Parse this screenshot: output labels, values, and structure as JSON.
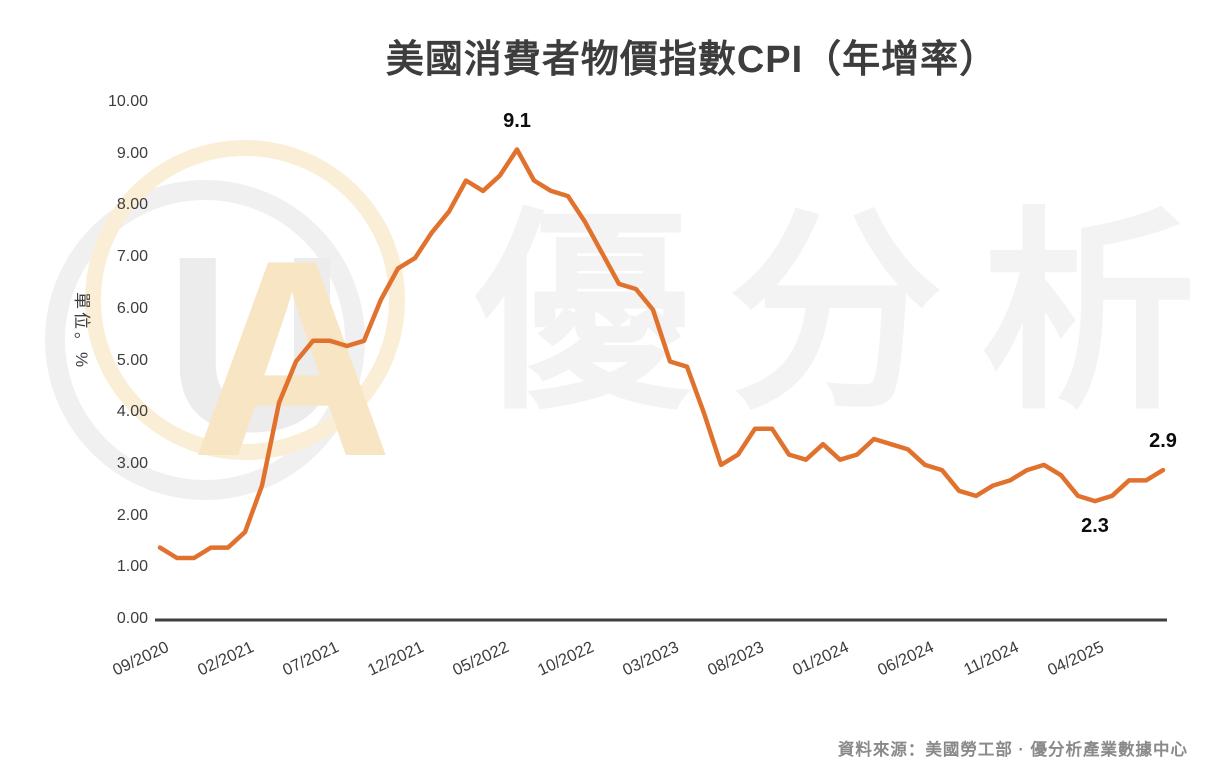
{
  "title": "美國消費者物價指數CPI（年增率）",
  "source": "資料來源：美國勞工部 · 優分析產業數據中心",
  "watermark": {
    "text": "優分析",
    "logo_u": "U",
    "logo_a": "A"
  },
  "colors": {
    "line": "#E1722E",
    "axis": "#3f3f3f",
    "label": "#3d3d3d",
    "annotation": "#0d0d0d",
    "source_text": "#8a8a8a",
    "watermark_gray": "#f0f0f0",
    "watermark_cream": "#fbeed6"
  },
  "y_axis": {
    "unit_label": "單位。%",
    "tick_labels": [
      "10.00",
      "9.00",
      "8.00",
      "7.00",
      "6.00",
      "5.00",
      "4.00",
      "3.00",
      "2.00",
      "1.00",
      "0.00"
    ]
  },
  "x_axis": {
    "tick_labels": [
      "09/2020",
      "02/2021",
      "07/2021",
      "12/2021",
      "05/2022",
      "10/2022",
      "03/2023",
      "08/2023",
      "01/2024",
      "06/2024",
      "11/2024",
      "04/2025"
    ]
  },
  "chart_data": {
    "type": "line",
    "title": "美國消費者物價指數CPI（年增率）",
    "xlabel": "",
    "ylabel": "單位。%",
    "ylim": [
      0,
      10
    ],
    "grid": false,
    "legend": "none",
    "x": [
      "09/2020",
      "10/2020",
      "11/2020",
      "12/2020",
      "01/2021",
      "02/2021",
      "03/2021",
      "04/2021",
      "05/2021",
      "06/2021",
      "07/2021",
      "08/2021",
      "09/2021",
      "10/2021",
      "11/2021",
      "12/2021",
      "01/2022",
      "02/2022",
      "03/2022",
      "04/2022",
      "05/2022",
      "06/2022",
      "07/2022",
      "08/2022",
      "09/2022",
      "10/2022",
      "11/2022",
      "12/2022",
      "01/2023",
      "02/2023",
      "03/2023",
      "04/2023",
      "05/2023",
      "06/2023",
      "07/2023",
      "08/2023",
      "09/2023",
      "10/2023",
      "11/2023",
      "12/2023",
      "01/2024",
      "02/2024",
      "03/2024",
      "04/2024",
      "05/2024",
      "06/2024",
      "07/2024",
      "08/2024",
      "09/2024",
      "10/2024",
      "11/2024",
      "12/2024",
      "01/2025",
      "02/2025",
      "03/2025",
      "04/2025",
      "05/2025",
      "06/2025",
      "07/2025",
      "08/2025"
    ],
    "series": [
      {
        "name": "CPI 年增率 (%)",
        "values": [
          1.4,
          1.2,
          1.2,
          1.4,
          1.4,
          1.7,
          2.6,
          4.2,
          5.0,
          5.4,
          5.4,
          5.3,
          5.4,
          6.2,
          6.8,
          7.0,
          7.5,
          7.9,
          8.5,
          8.3,
          8.6,
          9.1,
          8.5,
          8.3,
          8.2,
          7.7,
          7.1,
          6.5,
          6.4,
          6.0,
          5.0,
          4.9,
          4.0,
          3.0,
          3.2,
          3.7,
          3.7,
          3.2,
          3.1,
          3.4,
          3.1,
          3.2,
          3.5,
          3.4,
          3.3,
          3.0,
          2.9,
          2.5,
          2.4,
          2.6,
          2.7,
          2.9,
          3.0,
          2.8,
          2.4,
          2.3,
          2.4,
          2.7,
          2.7,
          2.9
        ]
      }
    ],
    "annotations": [
      {
        "text": "9.1",
        "month": "06/2022",
        "placement": "above"
      },
      {
        "text": "2.3",
        "month": "04/2025",
        "placement": "below"
      },
      {
        "text": "2.9",
        "month": "08/2025",
        "placement": "above"
      }
    ]
  }
}
